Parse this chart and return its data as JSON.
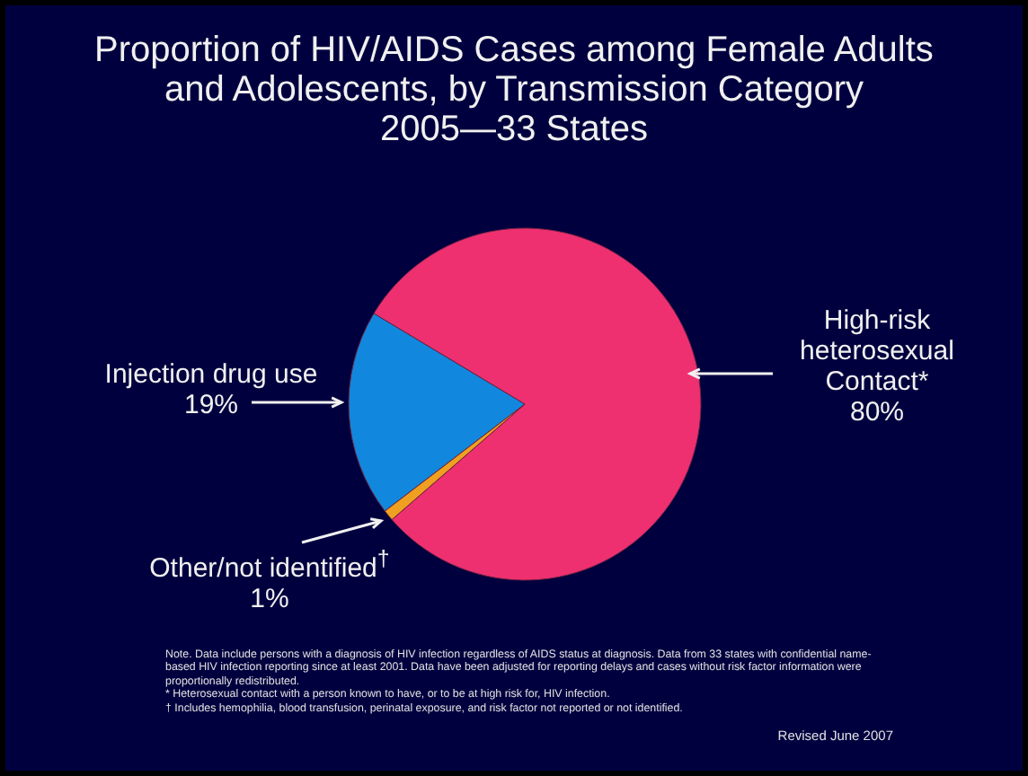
{
  "chart_data": {
    "type": "pie",
    "title": "Proportion of HIV/AIDS Cases among Female Adults and Adolescents, by Transmission Category",
    "subtitle": "2005—33 States",
    "categories": [
      "High-risk heterosexual Contact*",
      "Injection drug use",
      "Other/not identified$^{†}$"
    ],
    "values": [
      80,
      19,
      1
    ],
    "value_labels": [
      "80%",
      "19%",
      "1%"
    ],
    "colors": [
      "#ee3070",
      "#1188dd",
      "#f0a020"
    ],
    "annotations": [
      "Note. Data include persons with a diagnosis of HIV infection regardless of AIDS status at diagnosis. Data from 33 states with confidential name-based HIV infection reporting since at least 2001. Data have been adjusted for reporting delays and cases without risk factor information were proportionally redistributed.",
      "* Heterosexual contact with a person known to have, or to be at high risk for, HIV infection.",
      "† Includes hemophilia, blood transfusion, perinatal exposure, and risk factor not reported or not identified.",
      "Revised June 2007"
    ]
  }
}
